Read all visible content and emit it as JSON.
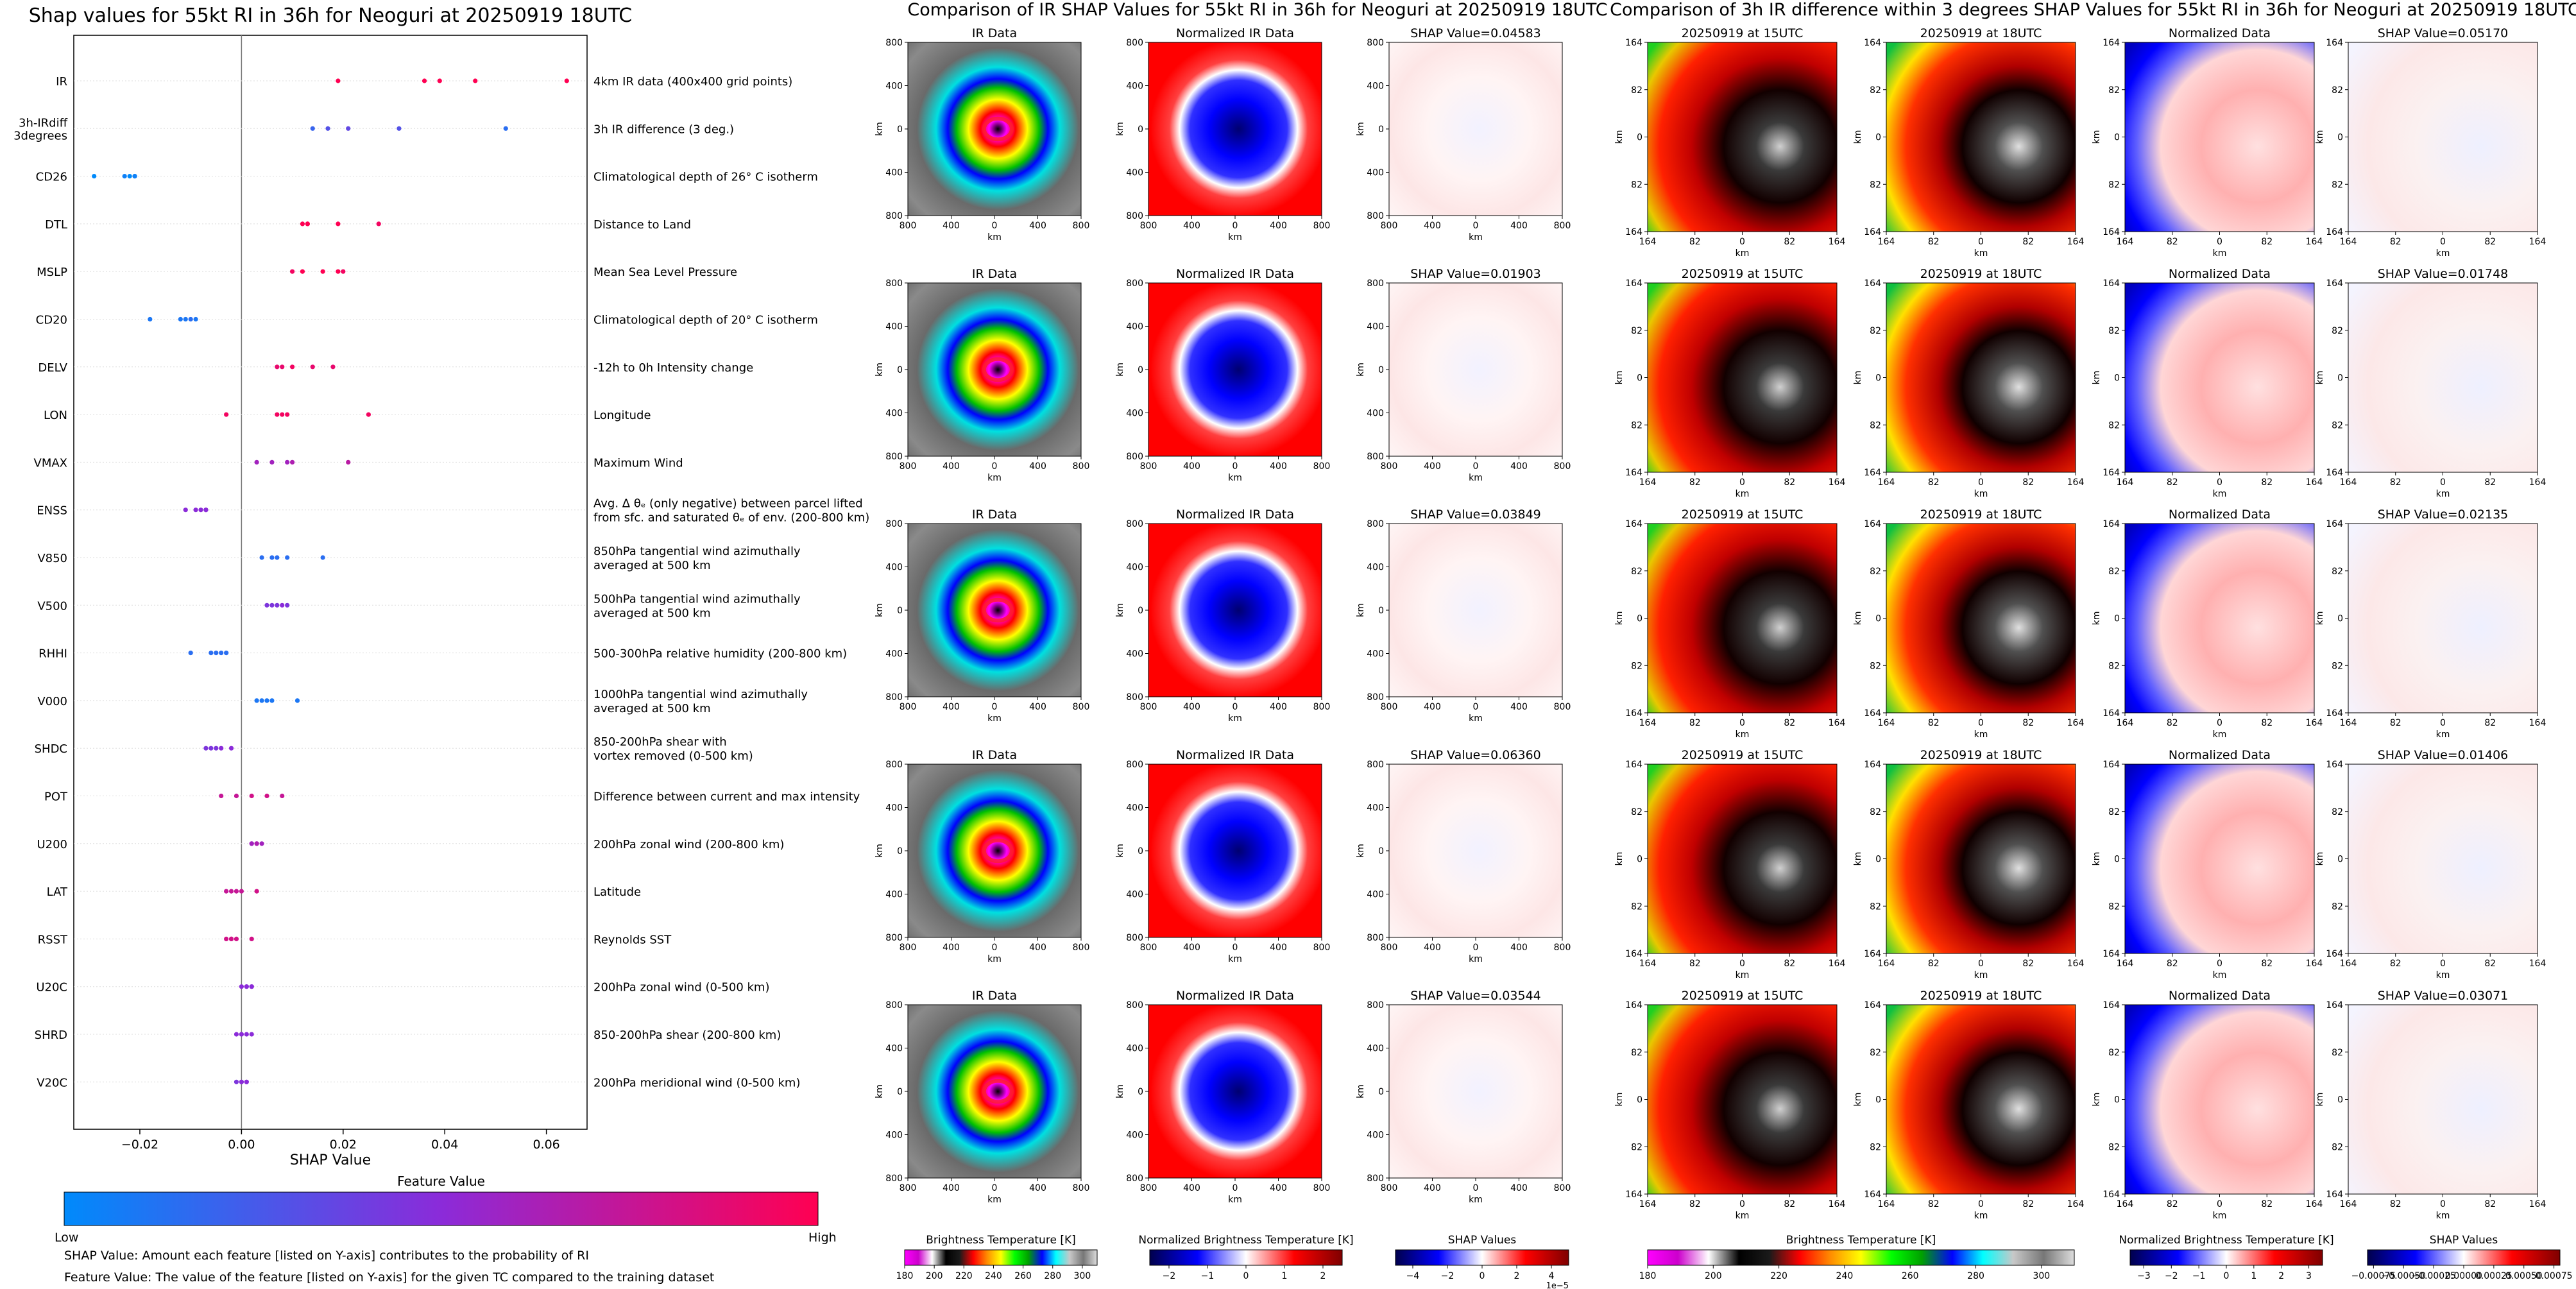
{
  "chart_data": [
    {
      "type": "scatter",
      "title": "Shap values for 55kt RI in 36h for Neoguri at 20250919 18UTC",
      "xlabel": "SHAP Value",
      "xlim": [
        -0.033,
        0.068
      ],
      "xticks": [
        -0.02,
        0.0,
        0.02,
        0.04,
        0.06
      ],
      "xtick_labels": [
        "−0.02",
        "0.00",
        "0.02",
        "0.04",
        "0.06"
      ],
      "colorbar": {
        "title": "Feature Value",
        "low_label": "Low",
        "high_label": "High",
        "colors": [
          "#008afb",
          "#8b2bd9",
          "#ff0052"
        ]
      },
      "footnotes": [
        "SHAP Value: Amount each feature [listed on Y-axis] contributes to the probability of RI",
        "Feature Value: The value of the feature [listed on Y-axis] for the given TC compared to the training dataset"
      ],
      "features": [
        {
          "name": "IR",
          "desc": [
            "4km IR data (400x400 grid points)"
          ],
          "points": [
            [
              0.019,
              1.0
            ],
            [
              0.036,
              1.0
            ],
            [
              0.039,
              1.0
            ],
            [
              0.046,
              1.0
            ],
            [
              0.064,
              1.0
            ]
          ]
        },
        {
          "name": [
            "3h-IRdiff",
            "3degrees"
          ],
          "desc": [
            "3h IR difference (3 deg.)"
          ],
          "points": [
            [
              0.014,
              0.2
            ],
            [
              0.017,
              0.3
            ],
            [
              0.021,
              0.35
            ],
            [
              0.031,
              0.3
            ],
            [
              0.052,
              0.15
            ]
          ]
        },
        {
          "name": "CD26",
          "desc": [
            "Climatological depth of 26° C isotherm"
          ],
          "points": [
            [
              -0.029,
              0.0
            ],
            [
              -0.023,
              0.05
            ],
            [
              -0.022,
              0.0
            ],
            [
              -0.021,
              0.0
            ],
            [
              -0.021,
              0.05
            ]
          ]
        },
        {
          "name": "DTL",
          "desc": [
            "Distance to Land"
          ],
          "points": [
            [
              0.012,
              1.0
            ],
            [
              0.013,
              1.0
            ],
            [
              0.013,
              1.0
            ],
            [
              0.019,
              1.0
            ],
            [
              0.027,
              0.95
            ]
          ]
        },
        {
          "name": "MSLP",
          "desc": [
            "Mean Sea Level Pressure"
          ],
          "points": [
            [
              0.01,
              0.95
            ],
            [
              0.012,
              1.0
            ],
            [
              0.016,
              1.0
            ],
            [
              0.019,
              1.0
            ],
            [
              0.02,
              0.95
            ]
          ]
        },
        {
          "name": "CD20",
          "desc": [
            "Climatological depth of 20° C isotherm"
          ],
          "points": [
            [
              -0.018,
              0.1
            ],
            [
              -0.012,
              0.1
            ],
            [
              -0.011,
              0.1
            ],
            [
              -0.01,
              0.15
            ],
            [
              -0.009,
              0.1
            ]
          ]
        },
        {
          "name": "DELV",
          "desc": [
            "-12h to 0h Intensity change"
          ],
          "points": [
            [
              0.007,
              0.9
            ],
            [
              0.008,
              0.9
            ],
            [
              0.01,
              0.95
            ],
            [
              0.014,
              0.9
            ],
            [
              0.018,
              0.9
            ]
          ]
        },
        {
          "name": "LON",
          "desc": [
            "Longitude"
          ],
          "points": [
            [
              -0.003,
              0.95
            ],
            [
              0.007,
              0.95
            ],
            [
              0.008,
              0.95
            ],
            [
              0.009,
              0.95
            ],
            [
              0.025,
              0.95
            ]
          ]
        },
        {
          "name": "VMAX",
          "desc": [
            "Maximum Wind"
          ],
          "points": [
            [
              0.003,
              0.6
            ],
            [
              0.006,
              0.6
            ],
            [
              0.009,
              0.6
            ],
            [
              0.01,
              0.65
            ],
            [
              0.021,
              0.7
            ]
          ]
        },
        {
          "name": "ENSS",
          "desc": [
            "Avg. Δ θₑ (only negative) between parcel lifted",
            "from sfc. and saturated θₑ of env. (200-800 km)"
          ],
          "points": [
            [
              -0.011,
              0.5
            ],
            [
              -0.009,
              0.5
            ],
            [
              -0.008,
              0.5
            ],
            [
              -0.007,
              0.55
            ],
            [
              -0.007,
              0.5
            ]
          ]
        },
        {
          "name": "V850",
          "desc": [
            "850hPa tangential wind azimuthally",
            "averaged at 500 km"
          ],
          "points": [
            [
              0.004,
              0.15
            ],
            [
              0.006,
              0.15
            ],
            [
              0.007,
              0.15
            ],
            [
              0.009,
              0.15
            ],
            [
              0.016,
              0.15
            ]
          ]
        },
        {
          "name": "V500",
          "desc": [
            "500hPa tangential wind azimuthally",
            "averaged at 500 km"
          ],
          "points": [
            [
              0.005,
              0.45
            ],
            [
              0.006,
              0.45
            ],
            [
              0.007,
              0.45
            ],
            [
              0.008,
              0.5
            ],
            [
              0.009,
              0.45
            ]
          ]
        },
        {
          "name": "RHHI",
          "desc": [
            "500-300hPa relative humidity (200-800 km)"
          ],
          "points": [
            [
              -0.01,
              0.15
            ],
            [
              -0.006,
              0.15
            ],
            [
              -0.005,
              0.15
            ],
            [
              -0.004,
              0.15
            ],
            [
              -0.003,
              0.15
            ]
          ]
        },
        {
          "name": "V000",
          "desc": [
            "1000hPa tangential wind azimuthally",
            "averaged at 500 km"
          ],
          "points": [
            [
              0.003,
              0.1
            ],
            [
              0.004,
              0.1
            ],
            [
              0.005,
              0.1
            ],
            [
              0.006,
              0.1
            ],
            [
              0.011,
              0.1
            ]
          ]
        },
        {
          "name": "SHDC",
          "desc": [
            "850-200hPa shear with",
            "vortex removed (0-500 km)"
          ],
          "points": [
            [
              -0.007,
              0.45
            ],
            [
              -0.006,
              0.45
            ],
            [
              -0.005,
              0.45
            ],
            [
              -0.004,
              0.5
            ],
            [
              -0.002,
              0.5
            ]
          ]
        },
        {
          "name": "POT",
          "desc": [
            "Difference between current and max intensity"
          ],
          "points": [
            [
              -0.004,
              0.75
            ],
            [
              -0.001,
              0.75
            ],
            [
              0.002,
              0.8
            ],
            [
              0.005,
              0.8
            ],
            [
              0.008,
              0.75
            ]
          ]
        },
        {
          "name": "U200",
          "desc": [
            "200hPa zonal wind (200-800 km)"
          ],
          "points": [
            [
              0.002,
              0.6
            ],
            [
              0.002,
              0.6
            ],
            [
              0.003,
              0.6
            ],
            [
              0.003,
              0.65
            ],
            [
              0.004,
              0.6
            ]
          ]
        },
        {
          "name": "LAT",
          "desc": [
            "Latitude"
          ],
          "points": [
            [
              -0.003,
              0.75
            ],
            [
              -0.002,
              0.75
            ],
            [
              -0.001,
              0.75
            ],
            [
              0.0,
              0.75
            ],
            [
              0.003,
              0.8
            ]
          ]
        },
        {
          "name": "RSST",
          "desc": [
            "Reynolds SST"
          ],
          "points": [
            [
              -0.003,
              0.8
            ],
            [
              -0.002,
              0.8
            ],
            [
              -0.002,
              0.8
            ],
            [
              -0.001,
              0.8
            ],
            [
              0.002,
              0.8
            ]
          ]
        },
        {
          "name": "U20C",
          "desc": [
            "200hPa zonal wind (0-500 km)"
          ],
          "points": [
            [
              0.0,
              0.5
            ],
            [
              0.001,
              0.5
            ],
            [
              0.001,
              0.5
            ],
            [
              0.002,
              0.5
            ],
            [
              0.002,
              0.5
            ]
          ]
        },
        {
          "name": "SHRD",
          "desc": [
            "850-200hPa shear (200-800 km)"
          ],
          "points": [
            [
              -0.001,
              0.5
            ],
            [
              0.0,
              0.5
            ],
            [
              0.0,
              0.5
            ],
            [
              0.001,
              0.5
            ],
            [
              0.002,
              0.5
            ]
          ]
        },
        {
          "name": "V20C",
          "desc": [
            "200hPa meridional wind (0-500 km)"
          ],
          "points": [
            [
              -0.001,
              0.45
            ],
            [
              0.0,
              0.45
            ],
            [
              0.0,
              0.5
            ],
            [
              0.001,
              0.5
            ],
            [
              0.001,
              0.5
            ]
          ]
        }
      ]
    },
    {
      "type": "heatmap",
      "title": "Comparison of IR SHAP Values for 55kt RI in 36h for Neoguri at 20250919 18UTC",
      "column_titles": [
        "IR Data",
        "Normalized IR Data"
      ],
      "shap_titles": [
        "SHAP Value=0.04583",
        "SHAP Value=0.01903",
        "SHAP Value=0.03849",
        "SHAP Value=0.06360",
        "SHAP Value=0.03544"
      ],
      "xlabel": "km",
      "ylabel": "km",
      "tick_labels": [
        "800",
        "400",
        "0",
        "400",
        "800"
      ],
      "colorbars": [
        {
          "label": "Brightness Temperature [K]",
          "ticks": [
            "180",
            "200",
            "220",
            "240",
            "260",
            "280",
            "300"
          ],
          "range": [
            180,
            310
          ]
        },
        {
          "label": "Normalized Brightness Temperature [K]",
          "ticks": [
            "−2",
            "−1",
            "0",
            "1",
            "2"
          ],
          "range": [
            -2.5,
            2.5
          ]
        },
        {
          "label": "SHAP Values",
          "ticks": [
            "−4",
            "−2",
            "0",
            "2",
            "4"
          ],
          "range": [
            -5,
            5
          ],
          "offset": "1e−5"
        }
      ]
    },
    {
      "type": "heatmap",
      "title": "Comparison of 3h IR difference within 3 degrees SHAP Values for 55kt RI in 36h for Neoguri at 20250919 18UTC",
      "column_titles": [
        "20250919 at 15UTC",
        "20250919 at 18UTC",
        "Normalized Data"
      ],
      "shap_titles": [
        "SHAP Value=0.05170",
        "SHAP Value=0.01748",
        "SHAP Value=0.02135",
        "SHAP Value=0.01406",
        "SHAP Value=0.03071"
      ],
      "xlabel": "km",
      "ylabel": "km",
      "tick_labels": [
        "164",
        "82",
        "0",
        "82",
        "164"
      ],
      "colorbars": [
        {
          "label": "Brightness Temperature [K]",
          "ticks": [
            "180",
            "200",
            "220",
            "240",
            "260",
            "280",
            "300"
          ],
          "range": [
            180,
            310
          ]
        },
        {
          "label": "Normalized Brightness Temperature [K]",
          "ticks": [
            "−3",
            "−2",
            "−1",
            "0",
            "1",
            "2",
            "3"
          ],
          "range": [
            -3.5,
            3.5
          ]
        },
        {
          "label": "SHAP Values",
          "ticks": [
            "−0.00075",
            "−0.00050",
            "−0.00025",
            "0.00000",
            "0.00025",
            "0.00050",
            "0.00075"
          ],
          "range": [
            -0.0008,
            0.0008
          ]
        }
      ]
    }
  ]
}
